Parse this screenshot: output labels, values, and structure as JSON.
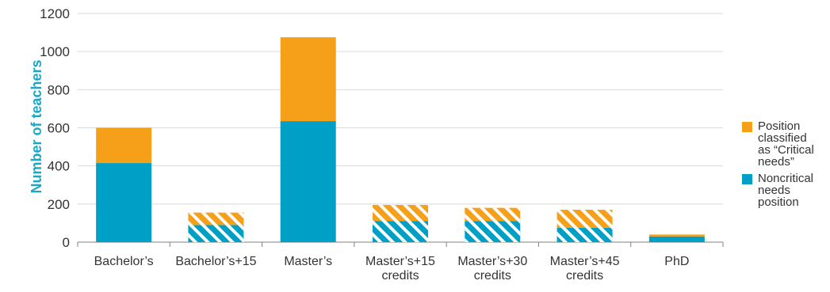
{
  "chart_data": {
    "type": "bar",
    "stacked": true,
    "categories": [
      [
        "Bachelor’s"
      ],
      [
        "Bachelor’s+15"
      ],
      [
        "Master’s"
      ],
      [
        "Master’s+15",
        "credits"
      ],
      [
        "Master’s+30",
        "credits"
      ],
      [
        "Master’s+45",
        "credits"
      ],
      [
        "PhD"
      ]
    ],
    "series": [
      {
        "name": "Noncritical needs position",
        "color": "#00a0c6",
        "values": [
          415,
          90,
          635,
          110,
          110,
          75,
          30
        ],
        "hatched": [
          false,
          true,
          false,
          true,
          true,
          true,
          false
        ]
      },
      {
        "name": "Position classified as “Critical needs”",
        "color": "#f6a01a",
        "values": [
          185,
          65,
          440,
          85,
          70,
          95,
          10
        ],
        "hatched": [
          false,
          true,
          false,
          true,
          true,
          true,
          false
        ]
      }
    ],
    "title": "",
    "xlabel": "",
    "ylabel": "Number of teachers",
    "ylim": [
      0,
      1200
    ],
    "yticks": [
      0,
      200,
      400,
      600,
      800,
      1000,
      1200
    ],
    "grid": true,
    "legend_position": "right"
  },
  "legend": {
    "items": [
      {
        "lines": [
          "Position",
          "classified",
          "as “Critical",
          "needs”"
        ],
        "color": "#f6a01a",
        "name": "legend-critical"
      },
      {
        "lines": [
          "Noncritical",
          "needs",
          "position"
        ],
        "color": "#00a0c6",
        "name": "legend-noncritical"
      }
    ]
  },
  "colors": {
    "ylabel": "#1aa6c9",
    "grid": "#d9d9d9",
    "axis": "#808080"
  }
}
